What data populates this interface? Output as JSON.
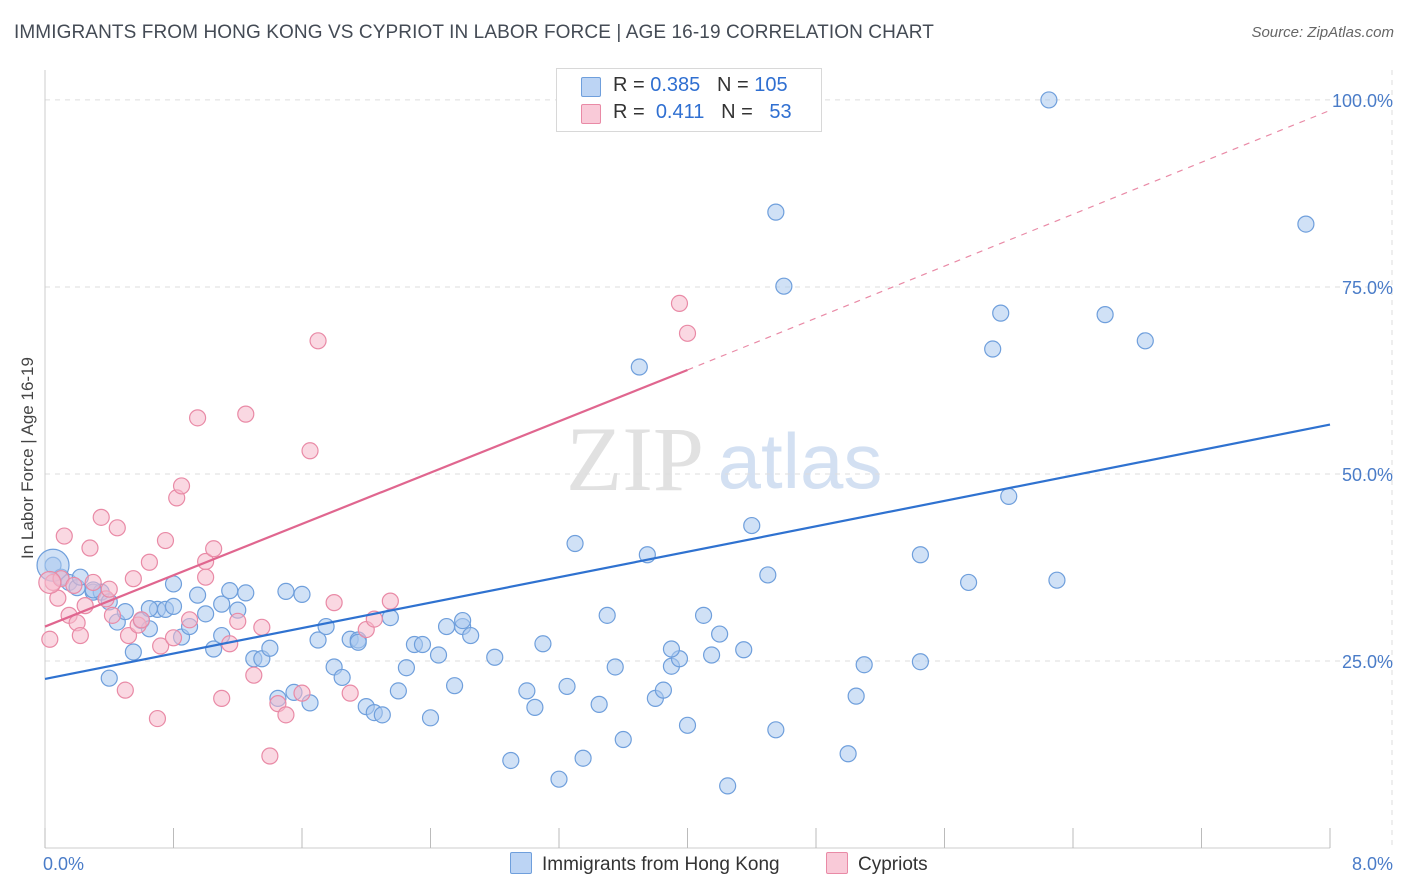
{
  "title": "IMMIGRANTS FROM HONG KONG VS CYPRIOT IN LABOR FORCE | AGE 16-19 CORRELATION CHART",
  "source": "Source: ZipAtlas.com",
  "watermark": {
    "zip": "ZIP",
    "atlas": "atlas"
  },
  "colors": {
    "blue_fill": "#a9c8ef",
    "blue_stroke": "#6f9fdc",
    "blue_line": "#2f72d0",
    "pink_fill": "#f6b8cb",
    "pink_stroke": "#e98aa6",
    "pink_line": "#e0668f",
    "grid": "#dddddd",
    "tick_label": "#4a7cc8"
  },
  "legend": {
    "rows": [
      {
        "r_label": "R =",
        "r_value": "0.385",
        "n_label": "N =",
        "n_value": "105",
        "color": "#a9c8ef"
      },
      {
        "r_label": "R =",
        "r_value": "0.411",
        "n_label": "N =",
        "n_value": "53",
        "color": "#f6b8cb"
      }
    ]
  },
  "bottom_legend": [
    {
      "label": "Immigrants from Hong Kong",
      "color": "#a9c8ef"
    },
    {
      "label": "Cypriots",
      "color": "#f6b8cb"
    }
  ],
  "chart_data": {
    "type": "scatter",
    "ylabel": "In Labor Force | Age 16-19",
    "xlim": [
      0,
      8
    ],
    "ylim": [
      0,
      104
    ],
    "x_tick_labels": [
      {
        "value": 0,
        "label": "0.0%"
      },
      {
        "value": 8,
        "label": "8.0%"
      }
    ],
    "y_tick_labels": [
      {
        "value": 25,
        "label": "25.0%"
      },
      {
        "value": 50,
        "label": "50.0%"
      },
      {
        "value": 75,
        "label": "75.0%"
      },
      {
        "value": 100,
        "label": "100.0%"
      }
    ],
    "grid": true,
    "series": [
      {
        "name": "Immigrants from Hong Kong",
        "color": "#a9c8ef",
        "trend": {
          "x0": 0,
          "y0": 22.6,
          "x1": 8,
          "y1": 56.6
        },
        "points": [
          [
            0.05,
            37.8
          ],
          [
            0.1,
            36.2
          ],
          [
            0.15,
            35.5
          ],
          [
            0.2,
            34.8
          ],
          [
            0.22,
            36.2
          ],
          [
            0.3,
            34.2
          ],
          [
            0.35,
            34.2
          ],
          [
            0.4,
            32.9
          ],
          [
            0.45,
            30.2
          ],
          [
            0.5,
            31.6
          ],
          [
            0.55,
            26.2
          ],
          [
            0.6,
            30.4
          ],
          [
            0.65,
            29.3
          ],
          [
            0.7,
            31.9
          ],
          [
            0.75,
            31.9
          ],
          [
            0.8,
            32.3
          ],
          [
            0.8,
            35.3
          ],
          [
            0.85,
            28.2
          ],
          [
            0.9,
            29.6
          ],
          [
            0.95,
            33.8
          ],
          [
            1.0,
            31.3
          ],
          [
            1.05,
            26.6
          ],
          [
            1.1,
            32.6
          ],
          [
            1.15,
            34.4
          ],
          [
            1.2,
            31.8
          ],
          [
            1.25,
            34.1
          ],
          [
            1.3,
            25.3
          ],
          [
            1.35,
            25.3
          ],
          [
            1.4,
            26.7
          ],
          [
            1.45,
            20.0
          ],
          [
            1.5,
            34.3
          ],
          [
            1.55,
            20.8
          ],
          [
            1.6,
            33.9
          ],
          [
            1.65,
            19.4
          ],
          [
            1.7,
            27.8
          ],
          [
            1.75,
            29.6
          ],
          [
            1.8,
            24.2
          ],
          [
            1.85,
            22.8
          ],
          [
            1.9,
            27.9
          ],
          [
            1.95,
            27.8
          ],
          [
            2.0,
            18.9
          ],
          [
            2.05,
            18.1
          ],
          [
            2.1,
            17.8
          ],
          [
            2.15,
            30.8
          ],
          [
            2.2,
            21.0
          ],
          [
            2.25,
            24.1
          ],
          [
            2.3,
            27.2
          ],
          [
            2.35,
            27.2
          ],
          [
            2.4,
            17.4
          ],
          [
            2.45,
            25.8
          ],
          [
            2.5,
            29.6
          ],
          [
            2.55,
            21.7
          ],
          [
            2.6,
            29.6
          ],
          [
            2.65,
            28.4
          ],
          [
            2.8,
            25.5
          ],
          [
            2.9,
            11.7
          ],
          [
            3.0,
            21.0
          ],
          [
            3.05,
            18.8
          ],
          [
            3.1,
            27.3
          ],
          [
            3.2,
            9.2
          ],
          [
            3.25,
            21.6
          ],
          [
            3.3,
            40.7
          ],
          [
            3.35,
            12.0
          ],
          [
            3.45,
            19.2
          ],
          [
            3.5,
            31.1
          ],
          [
            3.55,
            24.2
          ],
          [
            3.6,
            14.5
          ],
          [
            3.7,
            64.3
          ],
          [
            3.75,
            39.2
          ],
          [
            3.8,
            20.0
          ],
          [
            3.85,
            21.1
          ],
          [
            3.9,
            24.3
          ],
          [
            3.95,
            25.3
          ],
          [
            4.0,
            16.4
          ],
          [
            4.1,
            31.1
          ],
          [
            4.2,
            28.6
          ],
          [
            4.25,
            8.3
          ],
          [
            4.35,
            26.5
          ],
          [
            4.4,
            43.1
          ],
          [
            4.5,
            36.5
          ],
          [
            4.55,
            15.8
          ],
          [
            4.55,
            85.0
          ],
          [
            4.6,
            75.1
          ],
          [
            5.0,
            12.6
          ],
          [
            5.05,
            20.3
          ],
          [
            5.1,
            24.5
          ],
          [
            5.45,
            39.2
          ],
          [
            5.45,
            24.9
          ],
          [
            5.75,
            35.5
          ],
          [
            5.9,
            66.7
          ],
          [
            5.95,
            71.5
          ],
          [
            6.0,
            47.0
          ],
          [
            6.25,
            100.0
          ],
          [
            6.3,
            35.8
          ],
          [
            6.6,
            71.3
          ],
          [
            6.85,
            67.8
          ],
          [
            7.85,
            83.4
          ],
          [
            0.4,
            22.7
          ],
          [
            1.1,
            28.4
          ],
          [
            0.3,
            34.5
          ],
          [
            1.95,
            27.5
          ],
          [
            2.6,
            30.4
          ],
          [
            3.9,
            26.6
          ],
          [
            0.65,
            32.0
          ],
          [
            4.15,
            25.8
          ]
        ]
      },
      {
        "name": "Cypriots",
        "color": "#f6b8cb",
        "trend": {
          "x0": 0,
          "y0": 29.6,
          "x1": 4.0,
          "y1": 63.9,
          "dash_x1": 8,
          "dash_y1": 98.6
        },
        "points": [
          [
            0.03,
            27.9
          ],
          [
            0.05,
            35.5
          ],
          [
            0.08,
            33.4
          ],
          [
            0.1,
            36.0
          ],
          [
            0.12,
            41.7
          ],
          [
            0.15,
            31.1
          ],
          [
            0.18,
            35.1
          ],
          [
            0.2,
            30.1
          ],
          [
            0.22,
            28.4
          ],
          [
            0.25,
            32.4
          ],
          [
            0.28,
            40.1
          ],
          [
            0.3,
            35.5
          ],
          [
            0.35,
            44.2
          ],
          [
            0.38,
            33.3
          ],
          [
            0.4,
            34.6
          ],
          [
            0.42,
            31.1
          ],
          [
            0.45,
            42.8
          ],
          [
            0.5,
            21.1
          ],
          [
            0.52,
            28.4
          ],
          [
            0.55,
            36.0
          ],
          [
            0.58,
            29.8
          ],
          [
            0.6,
            30.5
          ],
          [
            0.65,
            38.2
          ],
          [
            0.7,
            17.3
          ],
          [
            0.72,
            27.0
          ],
          [
            0.75,
            41.1
          ],
          [
            0.8,
            28.1
          ],
          [
            0.82,
            46.8
          ],
          [
            0.85,
            48.4
          ],
          [
            0.9,
            30.5
          ],
          [
            0.95,
            57.5
          ],
          [
            1.0,
            38.3
          ],
          [
            1.05,
            40.0
          ],
          [
            1.1,
            20.0
          ],
          [
            1.15,
            27.3
          ],
          [
            1.2,
            30.3
          ],
          [
            1.25,
            58.0
          ],
          [
            1.3,
            23.1
          ],
          [
            1.35,
            29.5
          ],
          [
            1.4,
            12.3
          ],
          [
            1.45,
            19.3
          ],
          [
            1.5,
            17.8
          ],
          [
            1.6,
            20.7
          ],
          [
            1.65,
            53.1
          ],
          [
            1.7,
            67.8
          ],
          [
            1.8,
            32.8
          ],
          [
            1.9,
            20.7
          ],
          [
            2.0,
            29.2
          ],
          [
            2.05,
            30.6
          ],
          [
            2.15,
            33.0
          ],
          [
            3.95,
            72.8
          ],
          [
            4.0,
            68.8
          ],
          [
            1.0,
            36.2
          ]
        ]
      }
    ]
  }
}
